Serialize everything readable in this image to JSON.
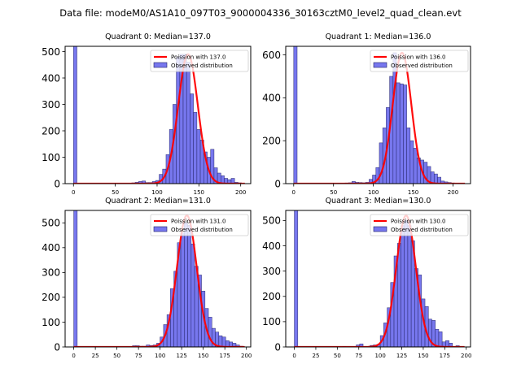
{
  "figure": {
    "suptitle": "Data file: modeM0/AS1A10_097T03_9000004336_30163cztM0_level2_quad_clean.evt",
    "colors": {
      "bar_fill": "#7777ee",
      "bar_edge": "#222266",
      "line": "#ff0000"
    }
  },
  "chart_data": [
    {
      "type": "bar",
      "title": "Quadrant 0: Median=137.0",
      "xlabel": "",
      "ylabel": "",
      "xlim": [
        -10,
        212
      ],
      "ylim": [
        0,
        520
      ],
      "xticks": [
        0,
        50,
        100,
        150,
        200
      ],
      "yticks": [
        0,
        100,
        200,
        300,
        400,
        500
      ],
      "bin_width": 4.1,
      "legend": {
        "position": "top-right",
        "entries": [
          "Poission with 137.0",
          "Observed distribution"
        ]
      },
      "poisson_mean": 137.0,
      "poisson_peak": 490,
      "poisson_range": [
        0,
        205
      ],
      "bins": [
        0,
        69.7,
        73.8,
        77.9,
        82,
        86.1,
        90.2,
        94.3,
        98.4,
        102.5,
        106.6,
        110.7,
        114.8,
        118.9,
        123,
        127.1,
        131.2,
        135.3,
        139.4,
        143.5,
        147.6,
        151.7,
        155.8,
        159.9,
        164,
        168.1,
        172.2,
        176.3,
        180.4,
        184.5,
        188.6,
        192.7,
        196.8
      ],
      "values": [
        520,
        3,
        5,
        8,
        10,
        4,
        4,
        8,
        12,
        35,
        55,
        110,
        205,
        300,
        480,
        490,
        490,
        460,
        340,
        270,
        205,
        165,
        120,
        100,
        130,
        60,
        40,
        30,
        20,
        15,
        20,
        5,
        3
      ]
    },
    {
      "type": "bar",
      "title": "Quadrant 1: Median=136.0",
      "xlabel": "",
      "ylabel": "",
      "xlim": [
        -10,
        222
      ],
      "ylim": [
        0,
        640
      ],
      "xticks": [
        0,
        50,
        100,
        150,
        200
      ],
      "yticks": [
        0,
        200,
        400,
        600
      ],
      "bin_width": 4.3,
      "legend": {
        "position": "top-right",
        "entries": [
          "Poission with 136.0",
          "Observed distribution"
        ]
      },
      "poisson_mean": 136.0,
      "poisson_peak": 610,
      "poisson_range": [
        0,
        215
      ],
      "bins": [
        0,
        64.5,
        68.8,
        73.1,
        77.4,
        81.7,
        86,
        90.3,
        94.6,
        98.9,
        103.2,
        107.5,
        111.8,
        116.1,
        120.4,
        124.7,
        129,
        133.3,
        137.6,
        141.9,
        146.2,
        150.5,
        154.8,
        159.1,
        163.4,
        167.7,
        172,
        176.3,
        180.6,
        184.9,
        189.2,
        193.5,
        197.8
      ],
      "values": [
        640,
        3,
        4,
        10,
        6,
        5,
        4,
        6,
        20,
        40,
        75,
        190,
        260,
        355,
        500,
        610,
        470,
        465,
        460,
        260,
        200,
        165,
        120,
        110,
        100,
        80,
        55,
        45,
        30,
        12,
        8,
        5,
        3
      ]
    },
    {
      "type": "bar",
      "title": "Quadrant 2: Median=131.0",
      "xlabel": "",
      "ylabel": "",
      "xlim": [
        -10,
        205
      ],
      "ylim": [
        0,
        550
      ],
      "xticks": [
        0,
        25,
        50,
        75,
        100,
        125,
        150,
        175,
        200
      ],
      "yticks": [
        0,
        100,
        200,
        300,
        400,
        500
      ],
      "bin_width": 4.0,
      "legend": {
        "position": "top-right",
        "entries": [
          "Poission with 131.0",
          "Observed distribution"
        ]
      },
      "poisson_mean": 131.0,
      "poisson_peak": 530,
      "poisson_range": [
        0,
        198
      ],
      "bins": [
        0,
        68,
        72,
        76,
        80,
        84,
        88,
        92,
        96,
        100,
        104,
        108,
        112,
        116,
        120,
        124,
        128,
        132,
        136,
        140,
        144,
        148,
        152,
        156,
        160,
        164,
        168,
        172,
        176,
        180,
        184,
        188,
        192
      ],
      "values": [
        550,
        5,
        5,
        3,
        3,
        8,
        6,
        8,
        15,
        40,
        90,
        130,
        235,
        305,
        420,
        460,
        500,
        490,
        415,
        325,
        290,
        225,
        155,
        120,
        75,
        60,
        45,
        40,
        25,
        20,
        15,
        8,
        3
      ]
    },
    {
      "type": "bar",
      "title": "Quadrant 3: Median=130.0",
      "xlabel": "",
      "ylabel": "",
      "xlim": [
        -10,
        205
      ],
      "ylim": [
        0,
        540
      ],
      "xticks": [
        0,
        25,
        50,
        75,
        100,
        125,
        150,
        175,
        200
      ],
      "yticks": [
        0,
        100,
        200,
        300,
        400,
        500
      ],
      "bin_width": 4.0,
      "legend": {
        "position": "top-right",
        "entries": [
          "Poission with 130.0",
          "Observed distribution"
        ]
      },
      "poisson_mean": 130.0,
      "poisson_peak": 520,
      "poisson_range": [
        0,
        198
      ],
      "bins": [
        0,
        56,
        72,
        76,
        88,
        92,
        96,
        100,
        104,
        108,
        112,
        116,
        120,
        124,
        128,
        132,
        136,
        140,
        144,
        148,
        152,
        156,
        160,
        164,
        168,
        172,
        176,
        180,
        188
      ],
      "values": [
        540,
        2,
        8,
        12,
        6,
        8,
        10,
        45,
        95,
        155,
        255,
        360,
        410,
        480,
        500,
        480,
        420,
        310,
        285,
        190,
        160,
        110,
        105,
        70,
        60,
        20,
        25,
        15,
        5
      ]
    }
  ]
}
